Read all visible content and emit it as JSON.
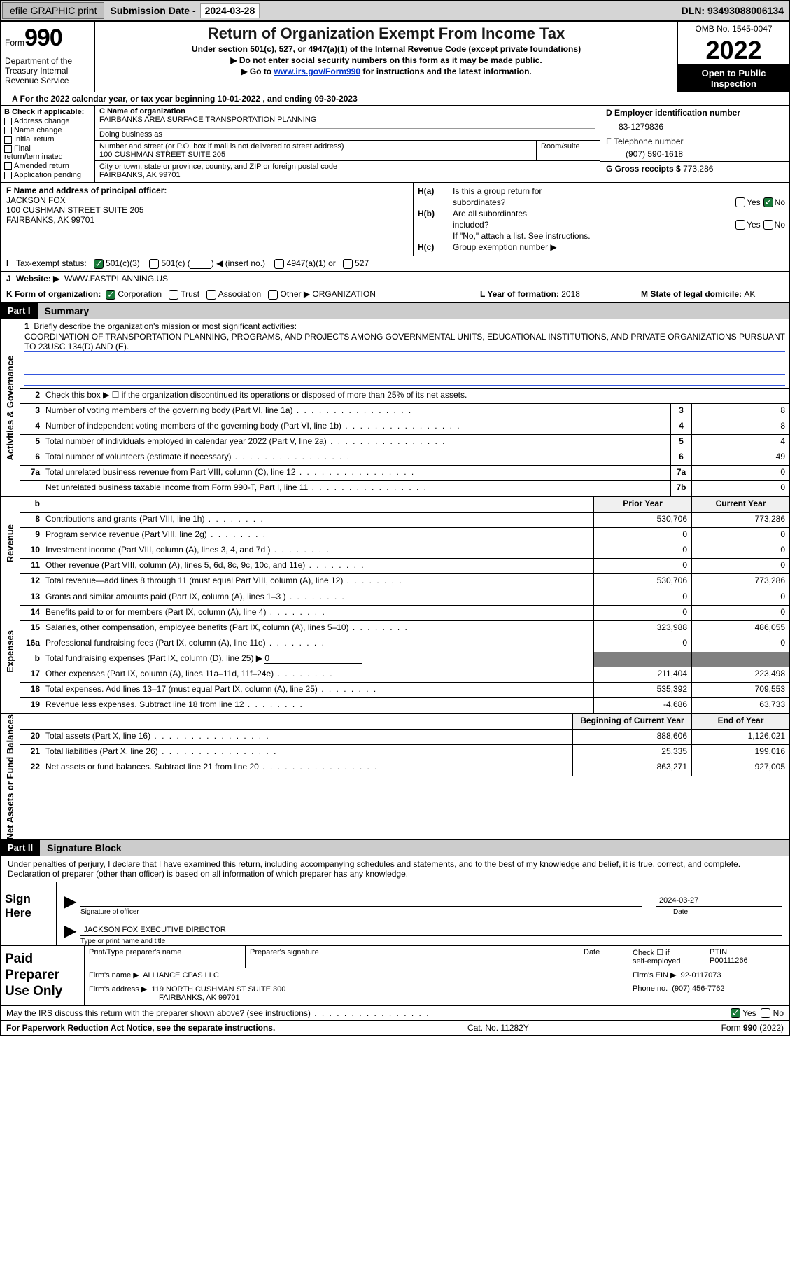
{
  "topbar": {
    "efile_btn": "efile GRAPHIC print",
    "sub_label": "Submission Date - ",
    "sub_date": "2024-03-28",
    "dln": "DLN: 93493088006134"
  },
  "hdr": {
    "form_word": "Form",
    "form_no": "990",
    "dept": "Department of the Treasury Internal Revenue Service",
    "title": "Return of Organization Exempt From Income Tax",
    "sub1": "Under section 501(c), 527, or 4947(a)(1) of the Internal Revenue Code (except private foundations)",
    "sub2": "▶ Do not enter social security numbers on this form as it may be made public.",
    "sub3_pre": "▶ Go to ",
    "sub3_link": "www.irs.gov/Form990",
    "sub3_post": " for instructions and the latest information.",
    "omb": "OMB No. 1545-0047",
    "year": "2022",
    "open_pub": "Open to Public Inspection"
  },
  "cal_line": "A For the 2022 calendar year, or tax year beginning 10-01-2022    , and ending 09-30-2023",
  "colB": {
    "hdr": "B Check if applicable:",
    "items": [
      "Address change",
      "Name change",
      "Initial return",
      "Final return/terminated",
      "Amended return",
      "Application pending"
    ]
  },
  "colC": {
    "name_lbl": "C Name of organization",
    "name": "FAIRBANKS AREA SURFACE TRANSPORTATION PLANNING",
    "dba_lbl": "Doing business as",
    "dba": "",
    "street_lbl": "Number and street (or P.O. box if mail is not delivered to street address)",
    "street": "100 CUSHMAN STREET SUITE 205",
    "room_lbl": "Room/suite",
    "room": "",
    "city_lbl": "City or town, state or province, country, and ZIP or foreign postal code",
    "city": "FAIRBANKS, AK  99701"
  },
  "colD": {
    "ein_lbl": "D Employer identification number",
    "ein": "83-1279836",
    "tel_lbl": "E Telephone number",
    "tel": "(907) 590-1618",
    "gross_lbl": "G Gross receipts $ ",
    "gross": "773,286"
  },
  "colF": {
    "lbl": "F Name and address of principal officer:",
    "name": "JACKSON FOX",
    "addr1": "100 CUSHMAN STREET SUITE 205",
    "addr2": "FAIRBANKS, AK  99701"
  },
  "colH": {
    "ha_lbl": "H(a)",
    "ha_txt1": "Is this a group return for",
    "ha_txt2": "subordinates?",
    "hb_lbl": "H(b)",
    "hb_txt1": "Are all subordinates",
    "hb_txt2": "included?",
    "hb_note": "If \"No,\" attach a list. See instructions.",
    "hc_lbl": "H(c)",
    "hc_txt": "Group exemption number ▶",
    "yes": "Yes",
    "no": "No"
  },
  "rowI": {
    "lead": "I",
    "label": "Tax-exempt status:",
    "c1": "501(c)(3)",
    "c2_a": "501(c) (",
    "c2_b": ") ◀ (insert no.)",
    "c3": "4947(a)(1) or",
    "c4": "527"
  },
  "rowJ": {
    "lead": "J",
    "label": "Website: ▶",
    "val": "WWW.FASTPLANNING.US"
  },
  "klm": {
    "k_lbl": "K Form of organization:",
    "k_opts": [
      "Corporation",
      "Trust",
      "Association",
      "Other ▶"
    ],
    "k_other_val": "ORGANIZATION",
    "l_lbl": "L Year of formation: ",
    "l_val": "2018",
    "m_lbl": "M State of legal domicile: ",
    "m_val": "AK"
  },
  "part1": {
    "tag": "Part I",
    "title": "Summary"
  },
  "mission": {
    "lbl": "1",
    "prompt": "Briefly describe the organization's mission or most significant activities:",
    "text": "COORDINATION OF TRANSPORTATION PLANNING, PROGRAMS, AND PROJECTS AMONG GOVERNMENTAL UNITS, EDUCATIONAL INSTITUTIONS, AND PRIVATE ORGANIZATIONS PURSUANT TO 23USC 134(D) AND (E)."
  },
  "line2": "Check this box ▶ ☐  if the organization discontinued its operations or disposed of more than 25% of its net assets.",
  "govRows": [
    {
      "n": "3",
      "d": "Number of voting members of the governing body (Part VI, line 1a)",
      "b": "3",
      "v": "8"
    },
    {
      "n": "4",
      "d": "Number of independent voting members of the governing body (Part VI, line 1b)",
      "b": "4",
      "v": "8"
    },
    {
      "n": "5",
      "d": "Total number of individuals employed in calendar year 2022 (Part V, line 2a)",
      "b": "5",
      "v": "4"
    },
    {
      "n": "6",
      "d": "Total number of volunteers (estimate if necessary)",
      "b": "6",
      "v": "49"
    },
    {
      "n": "7a",
      "d": "Total unrelated business revenue from Part VIII, column (C), line 12",
      "b": "7a",
      "v": "0"
    },
    {
      "n": "",
      "d": "Net unrelated business taxable income from Form 990-T, Part I, line 11",
      "b": "7b",
      "v": "0"
    }
  ],
  "revHdr": {
    "py": "Prior Year",
    "cy": "Current Year",
    "b": "b"
  },
  "revRows": [
    {
      "n": "8",
      "d": "Contributions and grants (Part VIII, line 1h)",
      "p": "530,706",
      "c": "773,286"
    },
    {
      "n": "9",
      "d": "Program service revenue (Part VIII, line 2g)",
      "p": "0",
      "c": "0"
    },
    {
      "n": "10",
      "d": "Investment income (Part VIII, column (A), lines 3, 4, and 7d )",
      "p": "0",
      "c": "0"
    },
    {
      "n": "11",
      "d": "Other revenue (Part VIII, column (A), lines 5, 6d, 8c, 9c, 10c, and 11e)",
      "p": "0",
      "c": "0"
    },
    {
      "n": "12",
      "d": "Total revenue—add lines 8 through 11 (must equal Part VIII, column (A), line 12)",
      "p": "530,706",
      "c": "773,286"
    }
  ],
  "expRows": [
    {
      "n": "13",
      "d": "Grants and similar amounts paid (Part IX, column (A), lines 1–3 )",
      "p": "0",
      "c": "0"
    },
    {
      "n": "14",
      "d": "Benefits paid to or for members (Part IX, column (A), line 4)",
      "p": "0",
      "c": "0"
    },
    {
      "n": "15",
      "d": "Salaries, other compensation, employee benefits (Part IX, column (A), lines 5–10)",
      "p": "323,988",
      "c": "486,055"
    },
    {
      "n": "16a",
      "d": "Professional fundraising fees (Part IX, column (A), line 11e)",
      "p": "0",
      "c": "0"
    }
  ],
  "exp16b": {
    "n": "b",
    "d_pre": "Total fundraising expenses (Part IX, column (D), line 25) ▶",
    "d_val": "0"
  },
  "expRows2": [
    {
      "n": "17",
      "d": "Other expenses (Part IX, column (A), lines 11a–11d, 11f–24e)",
      "p": "211,404",
      "c": "223,498"
    },
    {
      "n": "18",
      "d": "Total expenses. Add lines 13–17 (must equal Part IX, column (A), line 25)",
      "p": "535,392",
      "c": "709,553"
    },
    {
      "n": "19",
      "d": "Revenue less expenses. Subtract line 18 from line 12",
      "p": "-4,686",
      "c": "63,733"
    }
  ],
  "naHdr": {
    "b": "Beginning of Current Year",
    "e": "End of Year"
  },
  "naRows": [
    {
      "n": "20",
      "d": "Total assets (Part X, line 16)",
      "p": "888,606",
      "c": "1,126,021"
    },
    {
      "n": "21",
      "d": "Total liabilities (Part X, line 26)",
      "p": "25,335",
      "c": "199,016"
    },
    {
      "n": "22",
      "d": "Net assets or fund balances. Subtract line 21 from line 20",
      "p": "863,271",
      "c": "927,005"
    }
  ],
  "vtabs": {
    "gov": "Activities & Governance",
    "rev": "Revenue",
    "exp": "Expenses",
    "na": "Net Assets or Fund Balances"
  },
  "part2": {
    "tag": "Part II",
    "title": "Signature Block"
  },
  "sig": {
    "penalties": "Under penalties of perjury, I declare that I have examined this return, including accompanying schedules and statements, and to the best of my knowledge and belief, it is true, correct, and complete. Declaration of preparer (other than officer) is based on all information of which preparer has any knowledge.",
    "sign_here": "Sign Here",
    "sig_officer": "Signature of officer",
    "sig_date": "2024-03-27",
    "date_lbl": "Date",
    "name_title": "JACKSON FOX  EXECUTIVE DIRECTOR",
    "name_sub": "Type or print name and title"
  },
  "prep": {
    "lbl": "Paid Preparer Use Only",
    "r1": {
      "c1": "Print/Type preparer's name",
      "c2": "Preparer's signature",
      "c3": "Date",
      "c4_a": "Check ☐ if",
      "c4_b": "self-employed",
      "c5_lbl": "PTIN",
      "c5_val": "P00111266"
    },
    "r2": {
      "lbl": "Firm's name   ▶",
      "val": "ALLIANCE CPAS LLC",
      "ein_lbl": "Firm's EIN ▶",
      "ein": "92-0117073"
    },
    "r3": {
      "lbl": "Firm's address ▶",
      "val1": "119 NORTH CUSHMAN ST SUITE 300",
      "val2": "FAIRBANKS, AK  99701",
      "ph_lbl": "Phone no.",
      "ph": "(907) 456-7762"
    }
  },
  "footer": {
    "discuss": "May the IRS discuss this return with the preparer shown above? (see instructions)",
    "yes": "Yes",
    "no": "No",
    "pra": "For Paperwork Reduction Act Notice, see the separate instructions.",
    "cat": "Cat. No. 11282Y",
    "form": "Form 990 (2022)"
  },
  "colors": {
    "link": "#0033cc",
    "topbar_bg": "#d5d5d5",
    "btn_bg": "#bfbfbf",
    "part_title_bg": "#cccccc",
    "shade": "#808080",
    "check_green": "#1a7a3a",
    "underline": "#3355dd"
  }
}
